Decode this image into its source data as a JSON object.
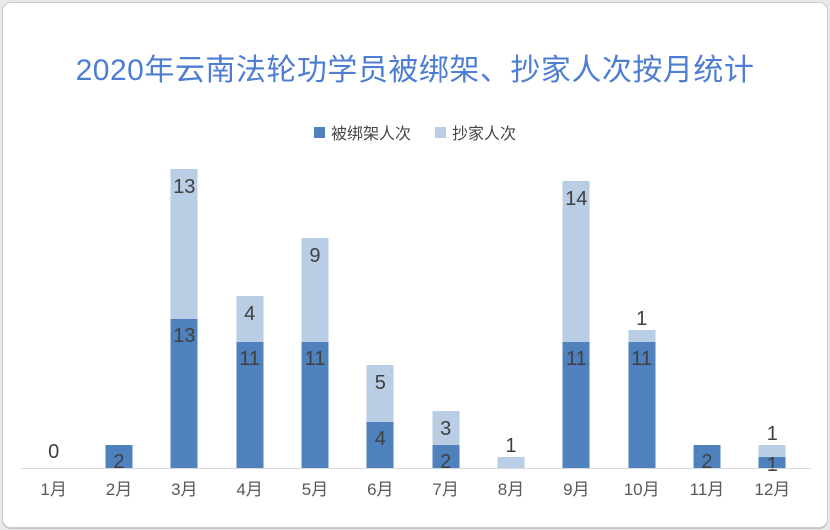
{
  "frame": {
    "background": "#ffffff",
    "border_color": "#cdcdcd"
  },
  "chart_data": {
    "type": "bar",
    "stacked": true,
    "title": "2020年云南法轮功学员被绑架、抄家人次按月统计",
    "title_color": "#4E7ED2",
    "categories": [
      "1月",
      "2月",
      "3月",
      "4月",
      "5月",
      "6月",
      "7月",
      "8月",
      "9月",
      "10月",
      "11月",
      "12月"
    ],
    "series": [
      {
        "name": "被绑架人次",
        "color": "#4F81BD",
        "values": [
          0,
          2,
          13,
          11,
          11,
          4,
          2,
          0,
          11,
          11,
          2,
          1
        ]
      },
      {
        "name": "抄家人次",
        "color": "#B9CDE4",
        "values": [
          0,
          0,
          13,
          4,
          9,
          5,
          3,
          1,
          14,
          1,
          0,
          1
        ]
      }
    ],
    "data_labels": true,
    "zero_label": "0",
    "legend_position": "top-center",
    "grid": false,
    "y_axis_visible": false,
    "x_axis_line_color": "#d9d9d9",
    "data_label_color": "#404040",
    "category_label_color": "#595959"
  }
}
